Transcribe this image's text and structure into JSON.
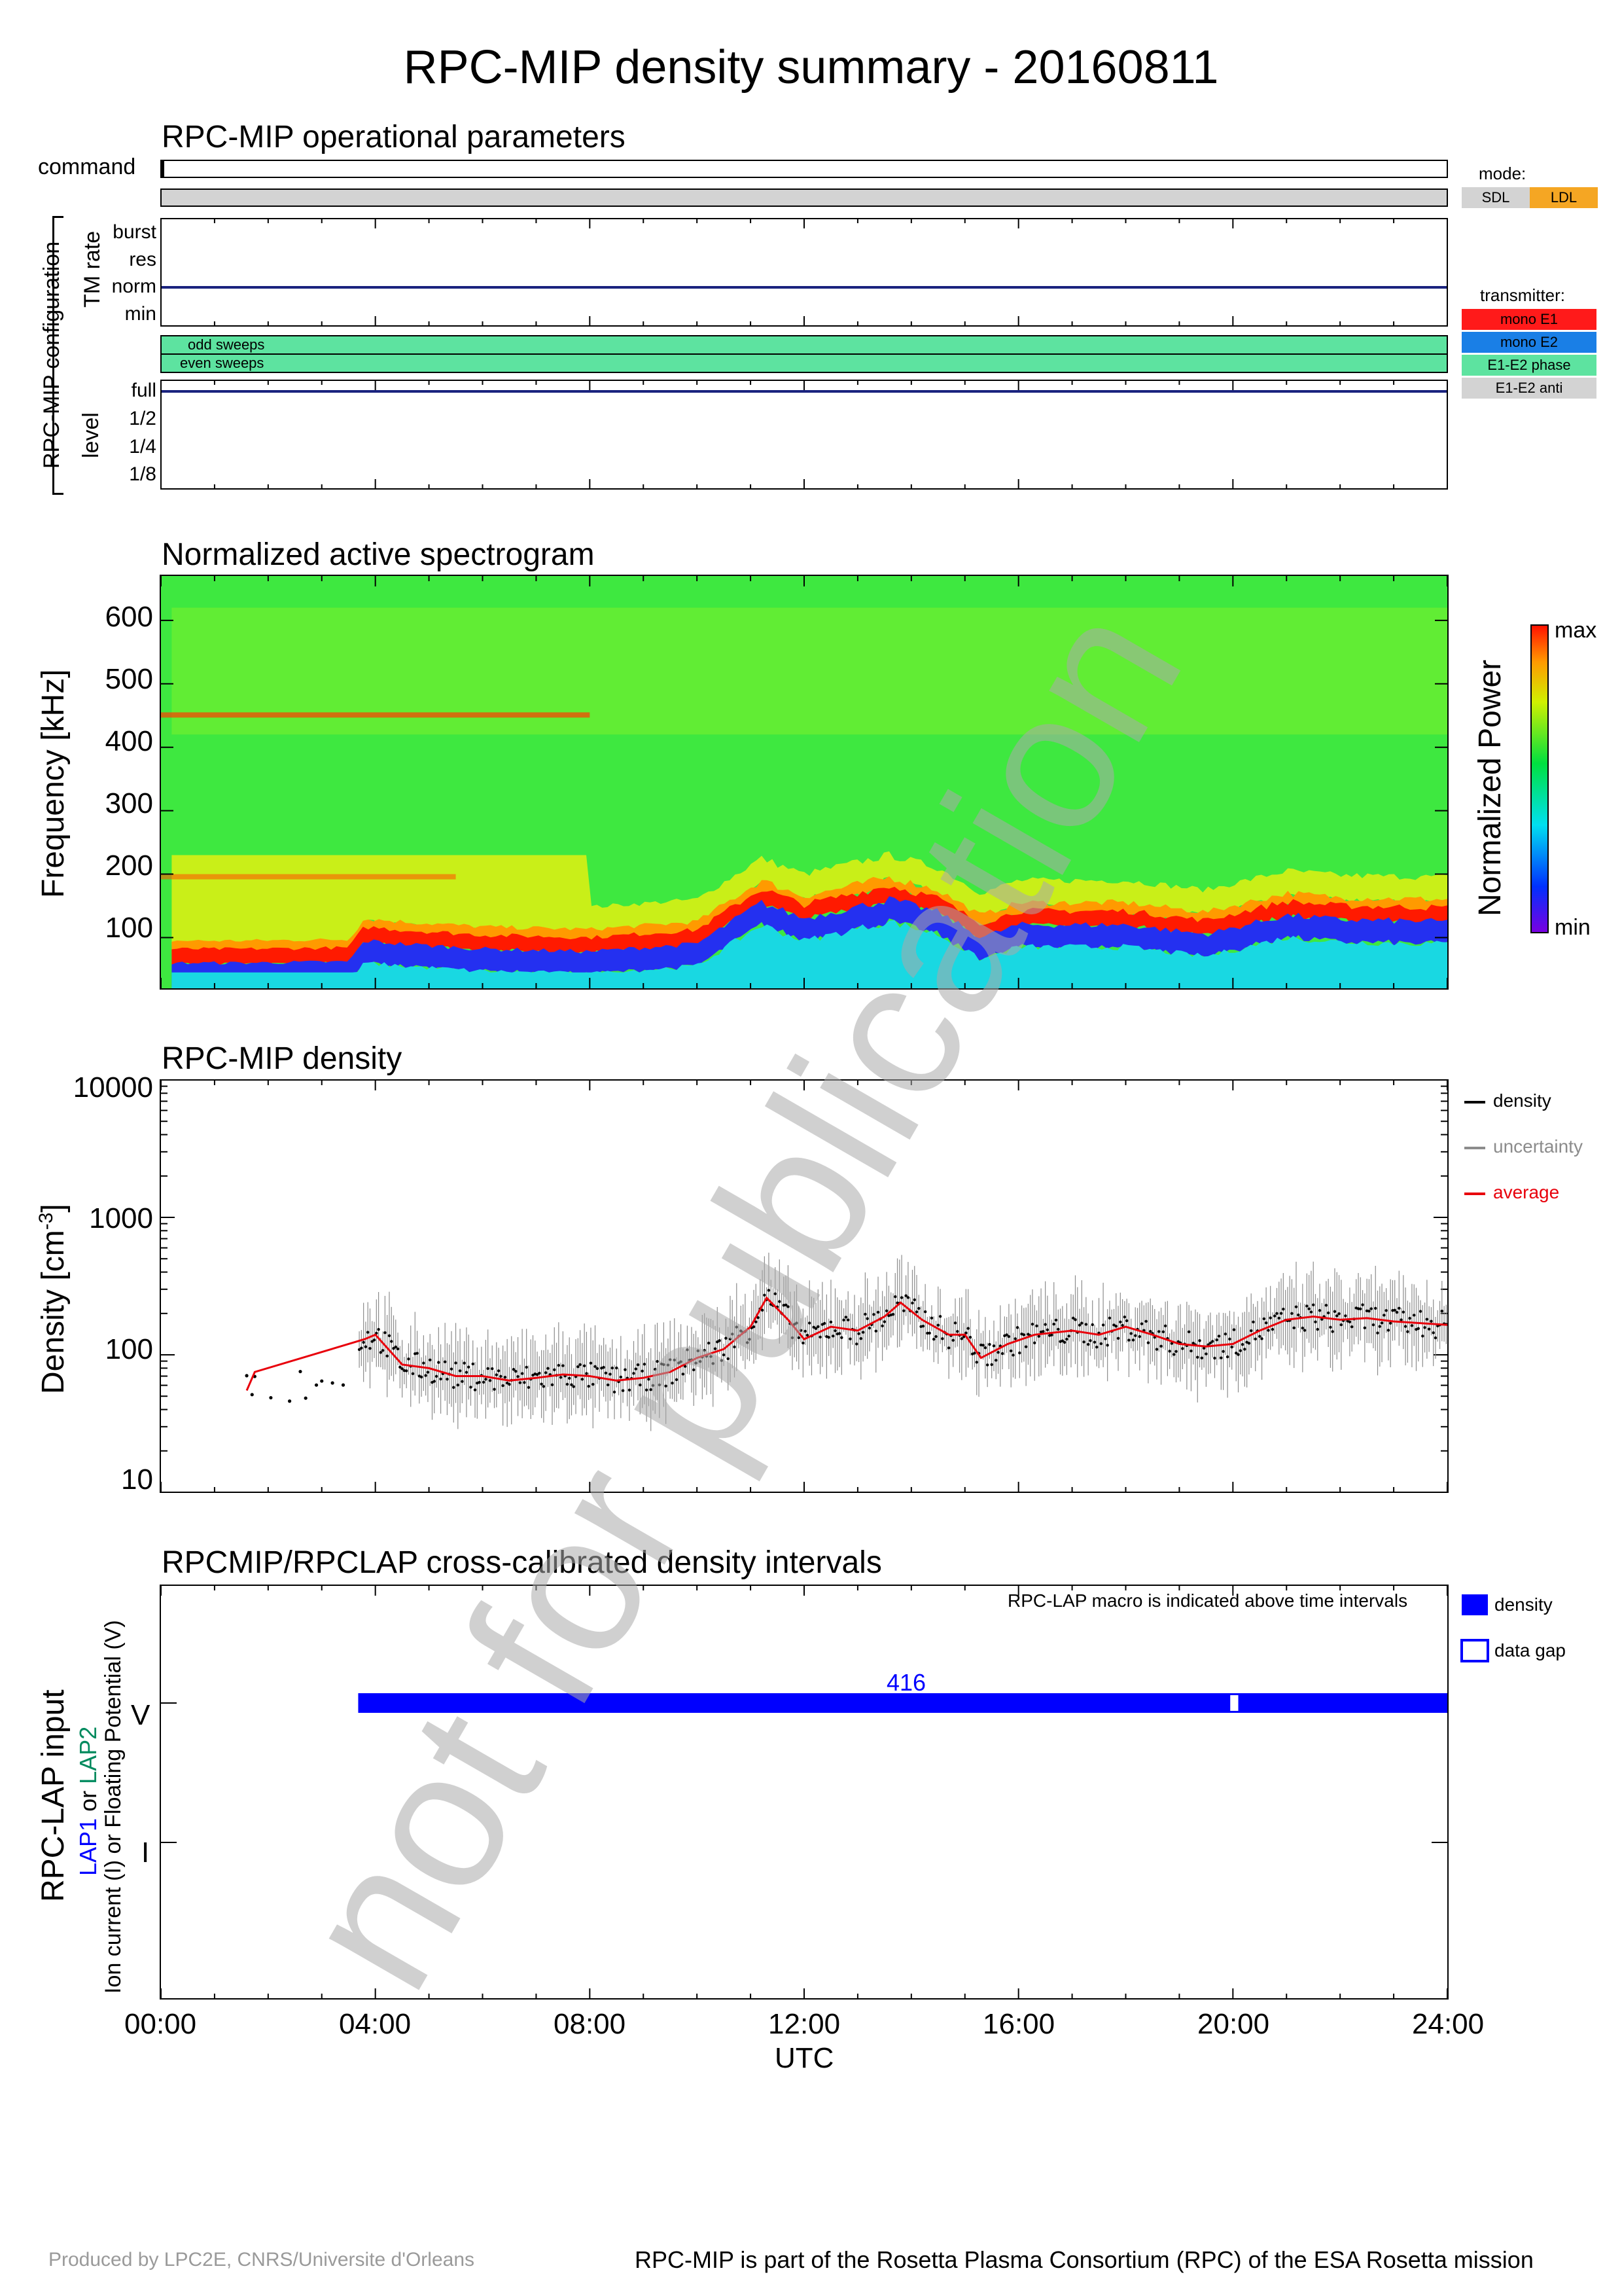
{
  "title": "RPC-MIP density summary - 20160811",
  "watermark": "not for publication",
  "op_params": {
    "title": "RPC-MIP operational parameters",
    "command_label": "command",
    "config_label": "RPC-MIP configuration",
    "tm_rate_label": "TM rate",
    "tm_rate_levels": [
      "burst",
      "res",
      "norm",
      "min"
    ],
    "tm_rate_value": "norm",
    "odd_sweeps": "odd sweeps",
    "even_sweeps": "even sweeps",
    "sweeps_color": "#5de3a0",
    "level_label": "level",
    "level_values": [
      "full",
      "1/2",
      "1/4",
      "1/8"
    ],
    "level_value": "full",
    "mode_title": "mode:",
    "mode_items": [
      {
        "label": "SDL",
        "color": "#d3d3d3"
      },
      {
        "label": "LDL",
        "color": "#f5a623"
      }
    ],
    "transmitter_title": "transmitter:",
    "transmitter_items": [
      {
        "label": "mono E1",
        "color": "#ff1a1a"
      },
      {
        "label": "mono E2",
        "color": "#1a7fe6"
      },
      {
        "label": "E1-E2 phase",
        "color": "#5de3a0"
      },
      {
        "label": "E1-E2 anti",
        "color": "#d3d3d3"
      }
    ]
  },
  "spectrogram": {
    "title": "Normalized active spectrogram",
    "ylabel": "Frequency [kHz]",
    "yticks": [
      "100",
      "200",
      "300",
      "400",
      "500",
      "600"
    ],
    "colorbar_label": "Normalized Power",
    "colorbar_max": "max",
    "colorbar_min": "min"
  },
  "density": {
    "title": "RPC-MIP density",
    "ylabel": "Density [cm",
    "ylabel_exp": "-3",
    "ylabel_end": "]",
    "yticks": [
      "10",
      "100",
      "1000",
      "10000"
    ],
    "legend": [
      {
        "label": "density",
        "color": "#000000"
      },
      {
        "label": "uncertainty",
        "color": "#8c8c8c"
      },
      {
        "label": "average",
        "color": "#e8000b"
      }
    ]
  },
  "lap": {
    "title": "RPCMIP/RPCLAP cross-calibrated density intervals",
    "macro_note": "RPC-LAP macro is indicated above time intervals",
    "ylabel1": "RPC-LAP input",
    "ylabel2_a": "LAP1",
    "ylabel2_b": " or ",
    "ylabel2_c": "LAP2",
    "ylabel3": "Ion current (I) or Floating Potential (V)",
    "ytick_v": "V",
    "ytick_i": "I",
    "macro_label": "416",
    "legend_density": "density",
    "legend_gap": "data gap",
    "bar_color": "#0000ff"
  },
  "xaxis": {
    "ticks": [
      "00:00",
      "04:00",
      "08:00",
      "12:00",
      "16:00",
      "20:00",
      "24:00"
    ],
    "label": "UTC"
  },
  "footer": {
    "left": "Produced by LPC2E, CNRS/Universite d'Orleans",
    "right": "RPC-MIP is part of the Rosetta Plasma Consortium (RPC) of the ESA Rosetta mission"
  },
  "chart_data": [
    {
      "type": "heatmap",
      "title": "Normalized active spectrogram",
      "xlabel": "UTC",
      "ylabel": "Frequency [kHz]",
      "xlim": [
        0,
        24
      ],
      "ylim": [
        20,
        670
      ],
      "colorbar": [
        "min",
        "max"
      ],
      "plasma_line_khz": [
        [
          0.2,
          70
        ],
        [
          1.5,
          70
        ],
        [
          3.5,
          72
        ],
        [
          3.8,
          105
        ],
        [
          4.5,
          100
        ],
        [
          6,
          92
        ],
        [
          8,
          88
        ],
        [
          10,
          100
        ],
        [
          11.2,
          165
        ],
        [
          12,
          140
        ],
        [
          13.6,
          170
        ],
        [
          14.5,
          150
        ],
        [
          15.3,
          110
        ],
        [
          16,
          130
        ],
        [
          18,
          130
        ],
        [
          19.5,
          115
        ],
        [
          21,
          145
        ],
        [
          22,
          138
        ],
        [
          24,
          135
        ]
      ]
    },
    {
      "type": "scatter",
      "title": "RPC-MIP density",
      "xlabel": "UTC",
      "ylabel": "Density [cm-3]",
      "ylim": [
        10,
        10000
      ],
      "yscale": "log",
      "legend": "top-right",
      "series": [
        {
          "name": "average",
          "x": [
            1.6,
            1.75,
            3.8,
            4.0,
            4.5,
            5.0,
            5.5,
            6.0,
            6.5,
            7.0,
            7.5,
            8.0,
            8.5,
            9.0,
            9.5,
            10.0,
            10.5,
            11.0,
            11.3,
            11.7,
            12.0,
            12.5,
            13.0,
            13.5,
            13.8,
            14.2,
            14.7,
            15.0,
            15.3,
            15.8,
            16.3,
            17.0,
            17.5,
            18.0,
            18.5,
            19.0,
            19.5,
            20.0,
            20.5,
            21.0,
            21.5,
            22.0,
            22.5,
            23.0,
            23.5,
            24.0
          ],
          "values": [
            55,
            75,
            130,
            140,
            85,
            80,
            70,
            70,
            65,
            68,
            72,
            70,
            65,
            68,
            75,
            95,
            110,
            160,
            260,
            180,
            130,
            160,
            150,
            190,
            240,
            180,
            140,
            140,
            95,
            120,
            140,
            150,
            140,
            160,
            140,
            120,
            115,
            120,
            150,
            180,
            190,
            180,
            185,
            175,
            170,
            165
          ]
        }
      ]
    },
    {
      "type": "bar",
      "title": "RPCMIP/RPCLAP cross-calibrated density intervals",
      "xlabel": "UTC",
      "categories": [
        "V",
        "I"
      ],
      "intervals": [
        {
          "channel": "V",
          "start": 3.68,
          "end": 24.0,
          "macro": "416"
        }
      ],
      "gaps": [
        {
          "channel": "V",
          "start": 19.95,
          "end": 20.1
        }
      ]
    }
  ]
}
